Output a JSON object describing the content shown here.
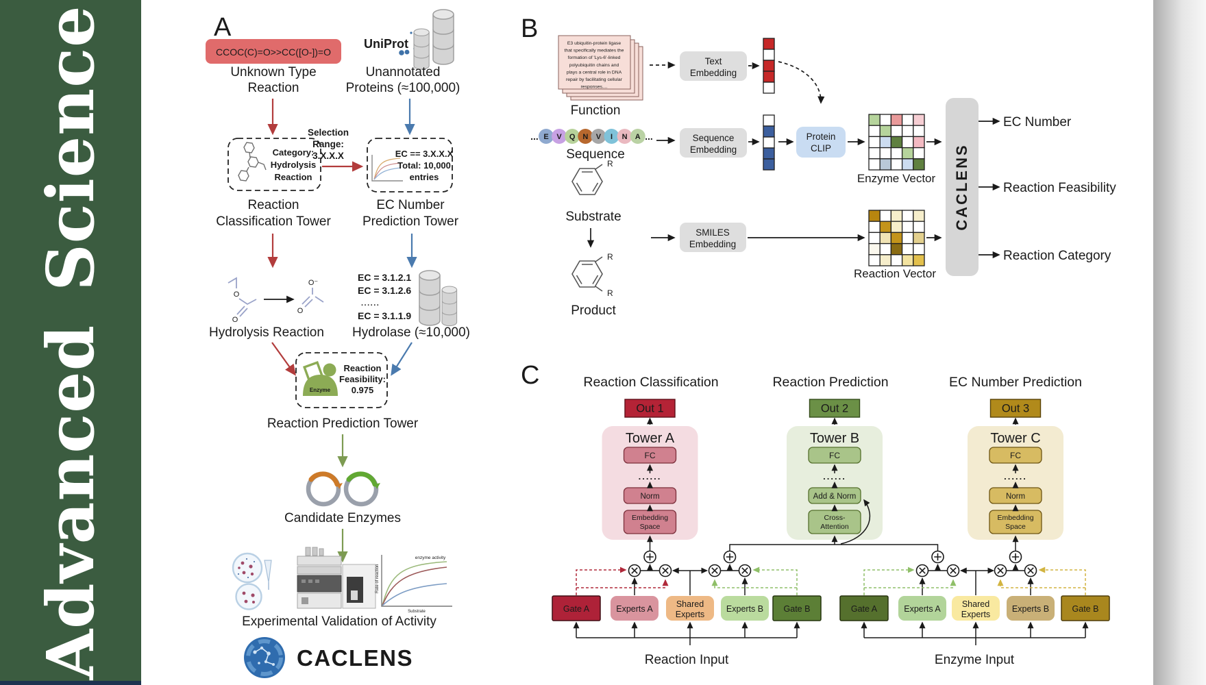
{
  "journal": {
    "name": "Advanced Science"
  },
  "colors": {
    "sidebar_green": "#3b5c40",
    "sidebar_navy": "#1d3350",
    "red_arrow": "#b23c3c",
    "blue_arrow": "#4a7aae",
    "green_arrow": "#7d9b52",
    "smiles_box": "#e06b6b",
    "uniprot_blue": "#3f72a8",
    "accent_red_text": "#b43535",
    "accent_blue_text": "#3a6ba5",
    "enzyme_green": "#8cab55",
    "gray_box": "#dedede",
    "clip_blue": "#c9dcf2",
    "caclens_bar": "#d6d6d6",
    "towerA": "#f4dce1",
    "towerB": "#e7eedd",
    "towerC": "#f3ebd1",
    "out1": "#b42336",
    "out2": "#6b9046",
    "out3": "#b18a1b",
    "gateA_reaction": "#ae2238",
    "gateB_reaction": "#5c7f36",
    "expertsA_reaction": "#d9949e",
    "shared_reaction": "#eeb985",
    "expertsB_reaction": "#badb9e",
    "gateA_enzyme": "#55702d",
    "gateB_enzyme": "#a9871e",
    "expertsA_enzyme": "#b2d49a",
    "shared_enzyme": "#f9e9a0",
    "expertsB_enzyme": "#c9b077"
  },
  "panelA": {
    "label": "A",
    "smiles": "CCOC(C)=O>>CC([O-])=O",
    "unknown_line1": "Unknown Type",
    "unknown_line2": "Reaction",
    "uniprot": "UniProt",
    "unannotated_line1": "Unannotated",
    "unannotated_line2": "Proteins (≈100,000)",
    "category_line1": "Category:",
    "category_line2": "Hydrolysis",
    "category_line3": "Reaction",
    "selection_line1": "Selection",
    "selection_line2": "Range:",
    "selection_line3": "3.X.X.X",
    "ecbox_line1": "EC == 3.X.X.X",
    "ecbox_line2": "Total: 10,000",
    "ecbox_line3": "entries",
    "tower1_line1": "Reaction",
    "tower1_line2": "Classification Tower",
    "tower2_line1": "EC Number",
    "tower2_line2": "Prediction Tower",
    "ec_item1": "EC = 3.1.2.1",
    "ec_item2": "EC = 3.1.2.6",
    "ec_dots": "......",
    "ec_item3": "EC = 3.1.1.9",
    "hydrolysis": "Hydrolysis Reaction",
    "hydrolase": "Hydrolase (≈10,000)",
    "enzyme_badge": "Enzyme",
    "feasibility_line1": "Reaction",
    "feasibility_line2": "Feasibility:",
    "feasibility_line3": "0.975",
    "tower3": "Reaction Prediction Tower",
    "candidate": "Candidate Enzymes",
    "validation": "Experimental Validation of Activity",
    "plot_ylabel": "Rate of reaction",
    "plot_xlabel": "Substrate",
    "plot_legend": "enzyme activity",
    "brand": "CACLENS"
  },
  "panelB": {
    "label": "B",
    "card_lines": [
      "E3 ubiquitin-protein ligase",
      "that specifically mediates the",
      "formation of 'Lys-6'-linked",
      "polyubiquitin chains and",
      "plays a central role in DNA",
      "repair by facilitating cellular",
      "responses...."
    ],
    "function_label": "Function",
    "pre_ellipsis": "...",
    "post_ellipsis": "...",
    "residues": [
      {
        "letter": "E",
        "color": "#8fa9cf"
      },
      {
        "letter": "V",
        "color": "#c7a1e3"
      },
      {
        "letter": "Q",
        "color": "#b7d29a"
      },
      {
        "letter": "N",
        "color": "#b8682e"
      },
      {
        "letter": "V",
        "color": "#a6a6a6"
      },
      {
        "letter": "I",
        "color": "#7fc2d9"
      },
      {
        "letter": "N",
        "color": "#eab9c0"
      },
      {
        "letter": "A",
        "color": "#bad2a4"
      }
    ],
    "sequence_label": "Sequence",
    "substrate_label": "Substrate",
    "product_label": "Product",
    "r_label": "R",
    "text_embedding_line1": "Text",
    "text_embedding_line2": "Embedding",
    "seq_embedding_line1": "Sequence",
    "seq_embedding_line2": "Embedding",
    "smiles_embedding_line1": "SMILES",
    "smiles_embedding_line2": "Embedding",
    "clip_line1": "Protein",
    "clip_line2": "CLIP",
    "enzyme_vector_label": "Enzyme Vector",
    "reaction_vector_label": "Reaction Vector",
    "caclens_label": "CACLENS",
    "output1": "EC Number",
    "output2": "Reaction Feasibility",
    "output3": "Reaction Category",
    "text_vector": [
      [
        "#c62828"
      ],
      [
        "#ffffff"
      ],
      [
        "#c62828"
      ],
      [
        "#c62828"
      ],
      [
        "#ffffff"
      ]
    ],
    "seq_vector": [
      [
        "#ffffff"
      ],
      [
        "#3c5f9e"
      ],
      [
        "#ffffff"
      ],
      [
        "#3c5f9e"
      ],
      [
        "#3c5f9e"
      ]
    ],
    "enzyme_matrix": [
      [
        "#b6d49c",
        "#ffffff",
        "#e99a9a",
        "#ffffff",
        "#f6ced3"
      ],
      [
        "#ffffff",
        "#b6d49c",
        "#ffffff",
        "#ffffff",
        "#ffffff"
      ],
      [
        "#ffffff",
        "#ccdcf0",
        "#5f8040",
        "#ffffff",
        "#f3bac2"
      ],
      [
        "#ffffff",
        "#ffffff",
        "#ffffff",
        "#b6d49c",
        "#ffffff"
      ],
      [
        "#ffffff",
        "#b9c8d8",
        "#ffffff",
        "#ccdcf0",
        "#5f8040"
      ]
    ],
    "reaction_matrix": [
      [
        "#b8860f",
        "#ffffff",
        "#f6eecb",
        "#ffffff",
        "#f6eecb"
      ],
      [
        "#ffffff",
        "#c3941b",
        "#f6eecb",
        "#ffffff",
        "#ffffff"
      ],
      [
        "#ffffff",
        "#f0e3b4",
        "#c3941b",
        "#ffffff",
        "#e3d08e"
      ],
      [
        "#fbf8ee",
        "#ffffff",
        "#8a6c14",
        "#ffffff",
        "#ffffff"
      ],
      [
        "#ffffff",
        "#f6eecb",
        "#ffffff",
        "#f3e3a0",
        "#e3c04c"
      ]
    ]
  },
  "panelC": {
    "label": "C",
    "heading1": "Reaction Classification",
    "heading2": "Reaction Prediction",
    "heading3": "EC Number Prediction",
    "out1": "Out 1",
    "out2": "Out 2",
    "out3": "Out 3",
    "towerA": {
      "title": "Tower A",
      "fc": "FC",
      "dots": "......",
      "norm": "Norm",
      "bottom_line1": "Embedding",
      "bottom_line2": "Space"
    },
    "towerB": {
      "title": "Tower B",
      "fc": "FC",
      "dots": "......",
      "norm": "Add & Norm",
      "bottom_line1": "Cross-",
      "bottom_line2": "Attention"
    },
    "towerC": {
      "title": "Tower C",
      "fc": "FC",
      "dots": "......",
      "norm": "Norm",
      "bottom_line1": "Embedding",
      "bottom_line2": "Space"
    },
    "moe1": {
      "gateA": "Gate A",
      "expertsA": "Experts A",
      "shared_line1": "Shared",
      "shared_line2": "Experts",
      "expertsB": "Experts B",
      "gateB": "Gate B",
      "input": "Reaction Input"
    },
    "moe2": {
      "gateA": "Gate A",
      "expertsA": "Experts A",
      "shared_line1": "Shared",
      "shared_line2": "Experts",
      "expertsB": "Experts B",
      "gateB": "Gate B",
      "input": "Enzyme Input"
    }
  }
}
